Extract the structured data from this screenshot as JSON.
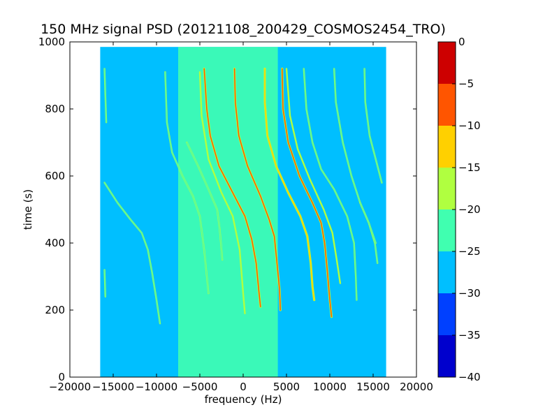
{
  "chart_data": {
    "type": "heatmap",
    "title": "150 MHz signal PSD (20121108_200429_COSMOS2454_TRO)",
    "xlabel": "frequency (Hz)",
    "ylabel": "time (s)",
    "xlim": [
      -20000,
      20000
    ],
    "ylim": [
      0,
      1000
    ],
    "xticks": [
      -20000,
      -15000,
      -10000,
      -5000,
      0,
      5000,
      10000,
      15000,
      20000
    ],
    "xtick_labels": [
      "−20000",
      "−15000",
      "−10000",
      "−5000",
      "0",
      "5000",
      "10000",
      "15000",
      "20000"
    ],
    "yticks": [
      0,
      200,
      400,
      600,
      800,
      1000
    ],
    "ytick_labels": [
      "0",
      "200",
      "400",
      "600",
      "800",
      "1000"
    ],
    "data_extent": {
      "freq_min": -16500,
      "freq_max": 16500,
      "time_min": 0,
      "time_max": 985
    },
    "background_level": -27.5,
    "band_level": -22.5,
    "band_freq_range": [
      -7500,
      4000
    ],
    "colorbar": {
      "ticks": [
        0,
        -5,
        -10,
        -15,
        -20,
        -25,
        -30,
        -35,
        -40
      ],
      "tick_labels": [
        "0",
        "−5",
        "−10",
        "−15",
        "−20",
        "−25",
        "−30",
        "−35",
        "−40"
      ],
      "levels": [
        {
          "from": -40,
          "to": -35,
          "color": "#0000cd"
        },
        {
          "from": -35,
          "to": -30,
          "color": "#0040ff"
        },
        {
          "from": -30,
          "to": -25,
          "color": "#00bfff"
        },
        {
          "from": -25,
          "to": -20,
          "color": "#40ffb0"
        },
        {
          "from": -20,
          "to": -15,
          "color": "#b0ff40"
        },
        {
          "from": -15,
          "to": -10,
          "color": "#ffd000"
        },
        {
          "from": -10,
          "to": -5,
          "color": "#ff5500"
        },
        {
          "from": -5,
          "to": 0,
          "color": "#cd0000"
        }
      ]
    },
    "tracks": [
      {
        "level": -22,
        "points": [
          [
            -16000,
            580
          ],
          [
            -14500,
            520
          ],
          [
            -13000,
            470
          ],
          [
            -11700,
            430
          ],
          [
            -11000,
            380
          ],
          [
            -10500,
            310
          ],
          [
            -10000,
            230
          ],
          [
            -9600,
            160
          ]
        ]
      },
      {
        "level": -20,
        "points": [
          [
            -16000,
            320
          ],
          [
            -15900,
            240
          ]
        ]
      },
      {
        "level": -20,
        "points": [
          [
            -16000,
            920
          ],
          [
            -15900,
            840
          ],
          [
            -15800,
            760
          ]
        ]
      },
      {
        "level": -20,
        "points": [
          [
            -9000,
            910
          ],
          [
            -8800,
            760
          ],
          [
            -8200,
            670
          ],
          [
            -7000,
            600
          ],
          [
            -5800,
            540
          ],
          [
            -5000,
            480
          ],
          [
            -4500,
            380
          ],
          [
            -4000,
            250
          ]
        ]
      },
      {
        "level": -18,
        "points": [
          [
            -5000,
            910
          ],
          [
            -4800,
            780
          ],
          [
            -4000,
            650
          ],
          [
            -2500,
            550
          ],
          [
            -1200,
            480
          ],
          [
            -400,
            380
          ],
          [
            0,
            250
          ],
          [
            200,
            190
          ]
        ]
      },
      {
        "level": -22,
        "points": [
          [
            -6500,
            700
          ],
          [
            -5200,
            630
          ],
          [
            -4000,
            560
          ],
          [
            -3000,
            500
          ],
          [
            -2700,
            440
          ],
          [
            -2400,
            350
          ]
        ]
      },
      {
        "level": -8,
        "points": [
          [
            -4500,
            920
          ],
          [
            -4200,
            800
          ],
          [
            -3800,
            720
          ],
          [
            -2800,
            630
          ],
          [
            -1200,
            550
          ],
          [
            200,
            480
          ],
          [
            1000,
            410
          ],
          [
            1500,
            340
          ],
          [
            1800,
            260
          ],
          [
            2000,
            210
          ]
        ]
      },
      {
        "level": -5,
        "points": [
          [
            -1000,
            920
          ],
          [
            -900,
            820
          ],
          [
            -500,
            720
          ],
          [
            500,
            630
          ],
          [
            2000,
            540
          ],
          [
            3000,
            470
          ],
          [
            3600,
            420
          ],
          [
            3900,
            340
          ],
          [
            4200,
            260
          ],
          [
            4300,
            200
          ]
        ]
      },
      {
        "level": -12,
        "points": [
          [
            2500,
            920
          ],
          [
            2500,
            820
          ],
          [
            2800,
            720
          ],
          [
            3800,
            630
          ],
          [
            5200,
            550
          ],
          [
            6600,
            480
          ],
          [
            7400,
            420
          ],
          [
            7800,
            340
          ],
          [
            8000,
            270
          ],
          [
            8200,
            230
          ]
        ]
      },
      {
        "level": -8,
        "points": [
          [
            4500,
            920
          ],
          [
            4600,
            800
          ],
          [
            5200,
            700
          ],
          [
            6500,
            600
          ],
          [
            8000,
            520
          ],
          [
            9000,
            460
          ],
          [
            9400,
            400
          ],
          [
            9700,
            320
          ],
          [
            10000,
            230
          ],
          [
            10200,
            180
          ]
        ]
      },
      {
        "level": -15,
        "points": [
          [
            5000,
            920
          ],
          [
            5400,
            780
          ],
          [
            6300,
            680
          ],
          [
            7700,
            590
          ],
          [
            9300,
            500
          ],
          [
            10300,
            430
          ],
          [
            10800,
            350
          ],
          [
            11200,
            280
          ]
        ]
      },
      {
        "level": -22,
        "points": [
          [
            7000,
            920
          ],
          [
            7300,
            800
          ],
          [
            8000,
            700
          ],
          [
            9000,
            620
          ],
          [
            10500,
            560
          ],
          [
            12000,
            480
          ],
          [
            12800,
            400
          ],
          [
            13000,
            300
          ],
          [
            13100,
            230
          ]
        ]
      },
      {
        "level": -20,
        "points": [
          [
            10500,
            920
          ],
          [
            10700,
            820
          ],
          [
            11500,
            700
          ],
          [
            12500,
            600
          ],
          [
            13500,
            520
          ],
          [
            14500,
            460
          ],
          [
            15200,
            400
          ],
          [
            15500,
            340
          ]
        ]
      },
      {
        "level": -22,
        "points": [
          [
            14000,
            920
          ],
          [
            14100,
            820
          ],
          [
            14600,
            720
          ],
          [
            15500,
            630
          ],
          [
            16000,
            580
          ]
        ]
      },
      {
        "level": -22,
        "points": [
          [
            13500,
            520
          ],
          [
            14500,
            460
          ],
          [
            15300,
            400
          ]
        ]
      }
    ]
  }
}
